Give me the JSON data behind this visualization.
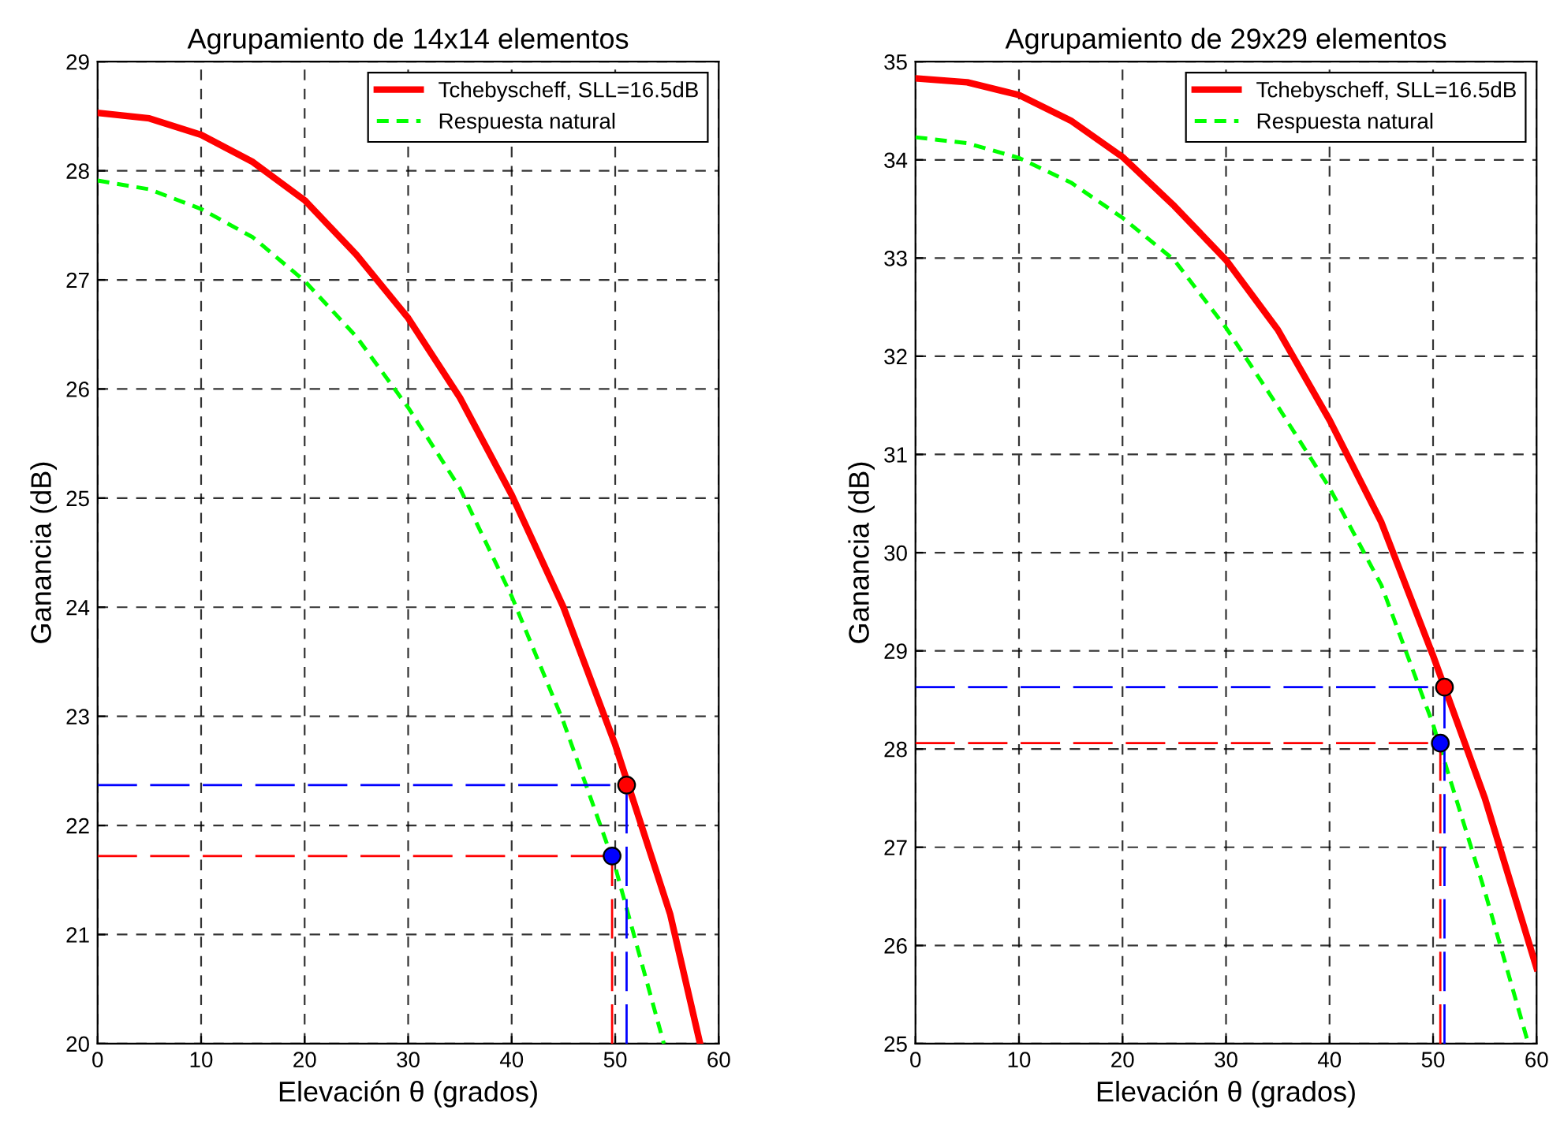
{
  "chart_data": [
    {
      "type": "line",
      "title": "Agrupamiento de 14x14 elementos",
      "xlabel": "Elevación θ (grados)",
      "ylabel": "Ganancia (dB)",
      "xlim": [
        0,
        60
      ],
      "xticks": [
        0,
        10,
        20,
        30,
        40,
        50,
        60
      ],
      "ylim": [
        20,
        29
      ],
      "yticks": [
        20,
        21,
        22,
        23,
        24,
        25,
        26,
        27,
        28,
        29
      ],
      "grid": true,
      "legend": "top right",
      "series": [
        {
          "name": "Tchebyscheff, SLL=16.5dB",
          "color": "#ff0000",
          "line_style": "solid",
          "x": [
            0,
            5,
            10,
            15,
            20,
            25,
            30,
            35,
            40,
            45,
            50,
            55.3,
            58.2
          ],
          "values": [
            28.53,
            28.48,
            28.33,
            28.08,
            27.73,
            27.23,
            26.65,
            25.92,
            25.03,
            24.0,
            22.74,
            21.19,
            20.0
          ]
        },
        {
          "name": "Respuesta natural",
          "color": "#00ff00",
          "line_style": "dashed",
          "x": [
            0,
            5,
            10,
            15,
            20,
            25,
            30,
            35,
            40,
            45,
            50,
            54.7
          ],
          "values": [
            27.91,
            27.83,
            27.65,
            27.39,
            26.99,
            26.48,
            25.83,
            25.09,
            24.1,
            22.95,
            21.62,
            20.0
          ]
        },
        {
          "color": "#0000ff",
          "line_style": "dashed",
          "x": [
            0,
            51.1
          ],
          "values": [
            22.37,
            22.37
          ]
        },
        {
          "color": "#ff0000",
          "line_style": "dashed",
          "x": [
            0,
            49.7
          ],
          "values": [
            21.72,
            21.72
          ]
        },
        {
          "color": "#ff0000",
          "line_style": "dashed",
          "x": [
            49.7,
            49.7
          ],
          "values": [
            20,
            21.72
          ]
        },
        {
          "color": "#0000ff",
          "line_style": "dashed",
          "x": [
            51.1,
            51.1
          ],
          "values": [
            20,
            22.37
          ]
        },
        {
          "type": "scatter",
          "color": "#ff0000",
          "marker": "circle",
          "x": [
            51.1
          ],
          "values": [
            22.37
          ]
        },
        {
          "type": "scatter",
          "color": "#0000ff",
          "marker": "circle",
          "x": [
            49.7
          ],
          "values": [
            21.72
          ]
        }
      ]
    },
    {
      "type": "line",
      "title": "Agrupamiento de 29x29 elementos",
      "xlabel": "Elevación θ (grados)",
      "ylabel": "Ganancia (dB)",
      "xlim": [
        0,
        60
      ],
      "xticks": [
        0,
        10,
        20,
        30,
        40,
        50,
        60
      ],
      "ylim": [
        25,
        35
      ],
      "yticks": [
        25,
        26,
        27,
        28,
        29,
        30,
        31,
        32,
        33,
        34,
        35
      ],
      "grid": true,
      "legend": "top right",
      "series": [
        {
          "name": "Tchebyscheff, SLL=16.5dB",
          "color": "#ff0000",
          "line_style": "solid",
          "x": [
            0,
            5,
            10,
            15,
            20,
            25,
            30,
            35,
            40,
            45,
            50,
            55,
            60
          ],
          "values": [
            34.83,
            34.79,
            34.66,
            34.4,
            34.03,
            33.53,
            32.98,
            32.27,
            31.35,
            30.31,
            28.95,
            27.5,
            25.77
          ]
        },
        {
          "name": "Respuesta natural",
          "color": "#00ff00",
          "line_style": "dashed",
          "x": [
            0,
            5,
            10,
            15,
            20,
            25,
            30,
            35,
            40,
            45,
            50,
            55,
            59.2
          ],
          "values": [
            34.23,
            34.17,
            34.02,
            33.77,
            33.41,
            32.98,
            32.29,
            31.49,
            30.66,
            29.67,
            28.25,
            26.55,
            25.0
          ]
        },
        {
          "color": "#0000ff",
          "line_style": "dashed",
          "x": [
            0,
            51.1
          ],
          "values": [
            28.63,
            28.63
          ]
        },
        {
          "color": "#ff0000",
          "line_style": "dashed",
          "x": [
            0,
            50.7
          ],
          "values": [
            28.06,
            28.06
          ]
        },
        {
          "color": "#ff0000",
          "line_style": "dashed",
          "x": [
            50.7,
            50.7
          ],
          "values": [
            25,
            28.06
          ]
        },
        {
          "color": "#0000ff",
          "line_style": "dashed",
          "x": [
            51.1,
            51.1
          ],
          "values": [
            25,
            28.63
          ]
        },
        {
          "type": "scatter",
          "color": "#ff0000",
          "marker": "circle",
          "x": [
            51.1
          ],
          "values": [
            28.63
          ]
        },
        {
          "type": "scatter",
          "color": "#0000ff",
          "marker": "circle",
          "x": [
            50.7
          ],
          "values": [
            28.06
          ]
        }
      ]
    }
  ]
}
